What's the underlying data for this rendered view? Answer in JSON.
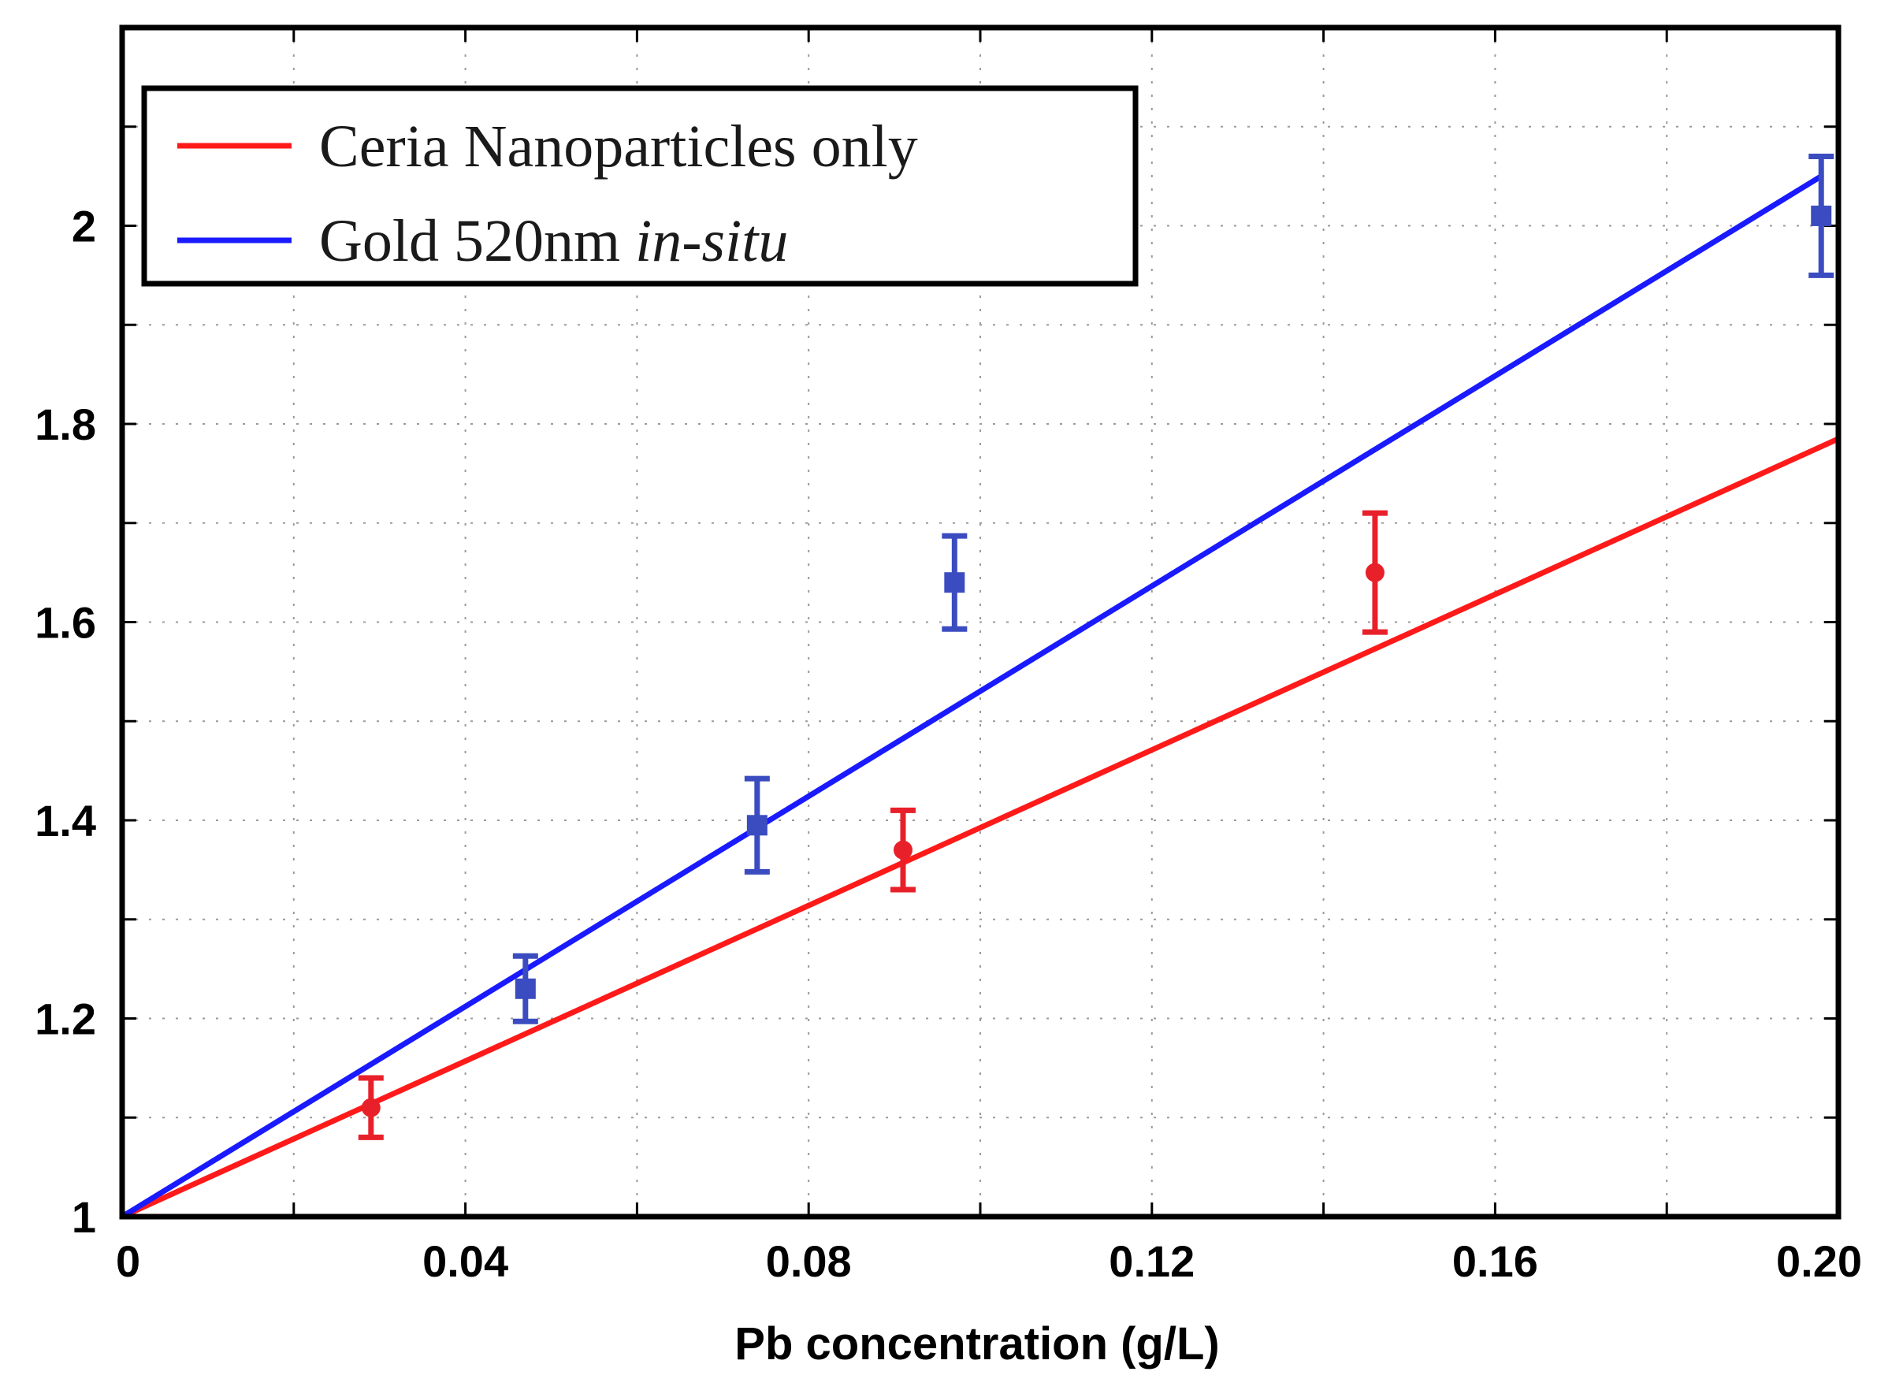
{
  "chart_data": {
    "type": "scatter",
    "title": "",
    "xlabel": "Pb concentration (g/L)",
    "ylabel": "",
    "xlim": [
      0,
      0.2
    ],
    "ylim": [
      1,
      2.2
    ],
    "grid": true,
    "xticks": [
      {
        "value": 0,
        "label": "0"
      },
      {
        "value": 0.04,
        "label": "0.04"
      },
      {
        "value": 0.08,
        "label": "0.08"
      },
      {
        "value": 0.12,
        "label": "0.12"
      },
      {
        "value": 0.16,
        "label": "0.16"
      },
      {
        "value": 0.2,
        "label": "0.20"
      }
    ],
    "yticks": [
      {
        "value": 1,
        "label": "1"
      },
      {
        "value": 1.2,
        "label": "1.2"
      },
      {
        "value": 1.4,
        "label": "1.4"
      },
      {
        "value": 1.6,
        "label": "1.6"
      },
      {
        "value": 1.8,
        "label": "1.8"
      },
      {
        "value": 2,
        "label": "2"
      }
    ],
    "legend": {
      "placement": "top-left",
      "entries": [
        {
          "series": "ceria",
          "text": "Ceria Nanoparticles only",
          "italic_suffix": ""
        },
        {
          "series": "gold",
          "text": "Gold 520nm ",
          "italic_suffix": "in-situ"
        }
      ]
    },
    "series": [
      {
        "id": "ceria",
        "name": "Ceria Nanoparticles only",
        "color": "#e8202a",
        "line_color": "#ff1a1a",
        "marker": "circle",
        "points": [
          {
            "x": 0.029,
            "y": 1.11,
            "err": 0.03
          },
          {
            "x": 0.091,
            "y": 1.37,
            "err": 0.04
          },
          {
            "x": 0.146,
            "y": 1.65,
            "err": 0.06
          }
        ],
        "fit": {
          "x": [
            0,
            0.2
          ],
          "y": [
            1,
            1.785
          ]
        }
      },
      {
        "id": "gold",
        "name": "Gold 520nm in-situ",
        "color": "#3b4cc0",
        "line_color": "#1a1aff",
        "marker": "square",
        "points": [
          {
            "x": 0.047,
            "y": 1.23,
            "err": 0.033
          },
          {
            "x": 0.074,
            "y": 1.395,
            "err": 0.047
          },
          {
            "x": 0.097,
            "y": 1.64,
            "err": 0.047
          },
          {
            "x": 0.198,
            "y": 2.01,
            "err": 0.06
          }
        ],
        "fit": {
          "x": [
            0,
            0.198
          ],
          "y": [
            1,
            2.05
          ]
        }
      }
    ]
  }
}
